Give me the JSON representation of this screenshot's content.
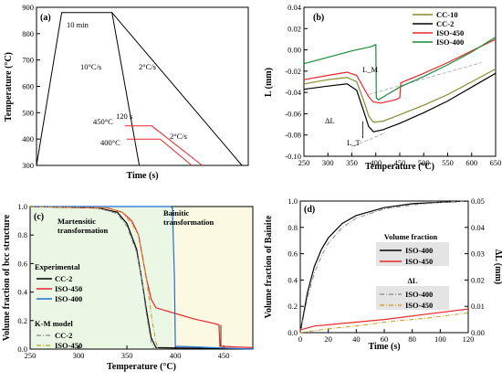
{
  "chart_data": [
    {
      "panel_label": "(a)",
      "type": "line",
      "xlabel": "Time (s)",
      "ylabel": "Temperature (°C)",
      "ylim": [
        300,
        900
      ],
      "yticks": [
        300,
        400,
        500,
        600,
        700,
        800,
        900
      ],
      "y_tick_labels": [
        "300",
        "400",
        "500",
        "600",
        "700",
        "800",
        "900"
      ],
      "annotations": [
        "10 min",
        "10°C/s",
        "2°C/s",
        "450°C",
        "120 s",
        "2°C/s",
        "400°C"
      ],
      "series": [
        {
          "color": "#000000",
          "points": [
            [
              0,
              300
            ],
            [
              0.6,
              880
            ],
            [
              1.8,
              880
            ],
            [
              2.45,
              300
            ]
          ]
        },
        {
          "color": "#000000",
          "points": [
            [
              1.8,
              880
            ],
            [
              4.9,
              300
            ]
          ]
        },
        {
          "color": "#e8262b",
          "points": [
            [
              2.1,
              450
            ],
            [
              2.75,
              450
            ],
            [
              3.95,
              300
            ]
          ]
        },
        {
          "color": "#e8262b",
          "points": [
            [
              2.15,
              400
            ],
            [
              2.95,
              400
            ],
            [
              3.7,
              300
            ]
          ]
        }
      ]
    },
    {
      "panel_label": "(b)",
      "type": "line",
      "xlabel": "Temperature (°C)",
      "ylabel": "L (mm)",
      "xlim": [
        250,
        650
      ],
      "ylim": [
        -0.1,
        0.04
      ],
      "xticks": [
        250,
        300,
        350,
        400,
        450,
        500,
        550,
        600,
        650
      ],
      "x_tick_labels": [
        "250",
        "300",
        "350",
        "400",
        "450",
        "500",
        "550",
        "600",
        "650"
      ],
      "yticks": [
        -0.1,
        -0.08,
        -0.06,
        -0.04,
        -0.02,
        0.0,
        0.02,
        0.04
      ],
      "y_tick_labels": [
        "-0.10",
        "-0.08",
        "-0.06",
        "-0.04",
        "-0.02",
        "0.00",
        "0.02",
        "0.04"
      ],
      "legend": {
        "position": "top-right",
        "entries": [
          "CC-10",
          "CC-2",
          "ISO-450",
          "ISO-400"
        ]
      },
      "annotations": [
        "L_M",
        "ΔL",
        "L_T"
      ],
      "series": [
        {
          "name": "CC-10",
          "color": "#8a8a2e",
          "points": [
            [
              250,
              -0.032
            ],
            [
              300,
              -0.028
            ],
            [
              340,
              -0.026
            ],
            [
              360,
              -0.03
            ],
            [
              375,
              -0.048
            ],
            [
              385,
              -0.062
            ],
            [
              395,
              -0.068
            ],
            [
              415,
              -0.067
            ],
            [
              450,
              -0.061
            ],
            [
              500,
              -0.052
            ],
            [
              550,
              -0.042
            ],
            [
              600,
              -0.03
            ],
            [
              650,
              -0.018
            ]
          ]
        },
        {
          "name": "CC-2",
          "color": "#000000",
          "points": [
            [
              250,
              -0.037
            ],
            [
              300,
              -0.034
            ],
            [
              340,
              -0.032
            ],
            [
              360,
              -0.038
            ],
            [
              375,
              -0.058
            ],
            [
              385,
              -0.072
            ],
            [
              395,
              -0.077
            ],
            [
              415,
              -0.075
            ],
            [
              450,
              -0.069
            ],
            [
              500,
              -0.059
            ],
            [
              550,
              -0.048
            ],
            [
              600,
              -0.035
            ],
            [
              650,
              -0.022
            ]
          ]
        },
        {
          "name": "ISO-450",
          "color": "#e8262b",
          "points": [
            [
              250,
              -0.028
            ],
            [
              300,
              -0.024
            ],
            [
              340,
              -0.021
            ],
            [
              360,
              -0.024
            ],
            [
              375,
              -0.036
            ],
            [
              385,
              -0.044
            ],
            [
              395,
              -0.049
            ],
            [
              410,
              -0.05
            ],
            [
              440,
              -0.047
            ],
            [
              450,
              -0.045
            ],
            [
              452,
              -0.031
            ],
            [
              500,
              -0.022
            ],
            [
              550,
              -0.012
            ],
            [
              600,
              -0.001
            ],
            [
              650,
              0.01
            ]
          ]
        },
        {
          "name": "ISO-400",
          "color": "#1f8a3a",
          "points": [
            [
              250,
              -0.013
            ],
            [
              300,
              -0.007
            ],
            [
              350,
              -0.001
            ],
            [
              390,
              0.003
            ],
            [
              400,
              0.005
            ],
            [
              401,
              -0.045
            ],
            [
              405,
              -0.047
            ],
            [
              420,
              -0.043
            ],
            [
              450,
              -0.035
            ],
            [
              500,
              -0.025
            ],
            [
              550,
              -0.014
            ],
            [
              600,
              -0.002
            ],
            [
              650,
              0.012
            ]
          ]
        }
      ]
    },
    {
      "panel_label": "(c)",
      "type": "line",
      "xlabel": "Temperature (°C)",
      "ylabel": "Volume fraction of bcc structure",
      "xlim": [
        250,
        480
      ],
      "ylim": [
        0,
        1.0
      ],
      "xticks": [
        250,
        300,
        350,
        400,
        450
      ],
      "x_tick_labels": [
        "250",
        "300",
        "350",
        "400",
        "450"
      ],
      "yticks": [
        0,
        0.2,
        0.4,
        0.6,
        0.8,
        1.0
      ],
      "y_tick_labels": [
        "0.0",
        "0.2",
        "0.4",
        "0.6",
        "0.8",
        "1.0"
      ],
      "regions": [
        "Martensitic transformation",
        "Bainitic transformation"
      ],
      "legend": {
        "position": "bottom-left",
        "group_titles": [
          "Experimental",
          "K-M model"
        ],
        "entries": [
          "CC-2",
          "ISO-450",
          "ISO-400",
          "CC-2",
          "ISO-450"
        ]
      },
      "series": [
        {
          "name": "CC-2",
          "group": "Experimental",
          "color": "#000000",
          "points": [
            [
              250,
              1.0
            ],
            [
              320,
              0.99
            ],
            [
              340,
              0.96
            ],
            [
              350,
              0.88
            ],
            [
              360,
              0.7
            ],
            [
              365,
              0.5
            ],
            [
              370,
              0.28
            ],
            [
              375,
              0.08
            ],
            [
              380,
              0.01
            ],
            [
              480,
              0.0
            ]
          ]
        },
        {
          "name": "ISO-450",
          "group": "Experimental",
          "color": "#e8262b",
          "points": [
            [
              250,
              1.0
            ],
            [
              330,
              0.99
            ],
            [
              345,
              0.96
            ],
            [
              355,
              0.9
            ],
            [
              362,
              0.8
            ],
            [
              370,
              0.5
            ],
            [
              375,
              0.35
            ],
            [
              380,
              0.29
            ],
            [
              400,
              0.25
            ],
            [
              420,
              0.21
            ],
            [
              440,
              0.18
            ],
            [
              445,
              0.17
            ],
            [
              446,
              0.02
            ],
            [
              480,
              0.01
            ]
          ]
        },
        {
          "name": "ISO-400",
          "group": "Experimental",
          "color": "#1e6fd0",
          "points": [
            [
              250,
              1.0
            ],
            [
              395,
              1.0
            ],
            [
              397,
              0.99
            ],
            [
              399,
              0.5
            ],
            [
              400,
              0.02
            ],
            [
              480,
              0.0
            ]
          ]
        },
        {
          "name": "CC-2",
          "group": "K-M model",
          "color": "#888888",
          "dashed": true,
          "points": [
            [
              250,
              1.0
            ],
            [
              320,
              0.99
            ],
            [
              340,
              0.95
            ],
            [
              350,
              0.86
            ],
            [
              360,
              0.68
            ],
            [
              365,
              0.5
            ],
            [
              370,
              0.25
            ],
            [
              375,
              0.05
            ],
            [
              378,
              0.0
            ]
          ]
        },
        {
          "name": "ISO-450",
          "group": "K-M model",
          "color": "#c79a1e",
          "dashed": true,
          "points": [
            [
              250,
              1.0
            ],
            [
              330,
              0.99
            ],
            [
              345,
              0.96
            ],
            [
              355,
              0.88
            ],
            [
              362,
              0.8
            ],
            [
              370,
              0.5
            ],
            [
              376,
              0.2
            ],
            [
              380,
              0.05
            ],
            [
              382,
              0.0
            ]
          ]
        }
      ]
    },
    {
      "panel_label": "(d)",
      "type": "line",
      "xlabel": "Time (s)",
      "ylabel": "Volume fraction of Bainite",
      "ylabel_right": "ΔL (mm)",
      "xlim": [
        0,
        120
      ],
      "ylim": [
        0,
        1.0
      ],
      "ylim_right": [
        0,
        0.05
      ],
      "xticks": [
        0,
        20,
        40,
        60,
        80,
        100,
        120
      ],
      "x_tick_labels": [
        "0",
        "20",
        "40",
        "60",
        "80",
        "100",
        "120"
      ],
      "yticks": [
        0,
        0.2,
        0.4,
        0.6,
        0.8,
        1.0
      ],
      "y_tick_labels": [
        "0.0",
        "0.2",
        "0.4",
        "0.6",
        "0.8",
        "1.0"
      ],
      "yticks_right": [
        0,
        0.01,
        0.02,
        0.03,
        0.04,
        0.05
      ],
      "y_tick_labels_right": [
        "0.00",
        "0.01",
        "0.02",
        "0.03",
        "0.04",
        "0.05"
      ],
      "legend": {
        "position": "right",
        "group_titles": [
          "Volume fraction",
          "ΔL"
        ],
        "entries": [
          "ISO-400",
          "ISO-450",
          "ISO-400",
          "ISO-450"
        ]
      },
      "series": [
        {
          "name": "ISO-400",
          "group": "Volume fraction",
          "color": "#000000",
          "points": [
            [
              0,
              0
            ],
            [
              5,
              0.3
            ],
            [
              10,
              0.5
            ],
            [
              15,
              0.63
            ],
            [
              20,
              0.72
            ],
            [
              30,
              0.83
            ],
            [
              40,
              0.89
            ],
            [
              60,
              0.95
            ],
            [
              80,
              0.98
            ],
            [
              100,
              0.99
            ],
            [
              120,
              1.0
            ]
          ]
        },
        {
          "name": "ISO-450",
          "group": "Volume fraction",
          "color": "#e8262b",
          "points": [
            [
              0,
              0.02
            ],
            [
              10,
              0.05
            ],
            [
              30,
              0.07
            ],
            [
              60,
              0.1
            ],
            [
              90,
              0.14
            ],
            [
              120,
              0.18
            ]
          ]
        },
        {
          "name": "ISO-400",
          "group": "ΔL",
          "color": "#888888",
          "dashed": true,
          "points": [
            [
              0,
              0
            ],
            [
              5,
              0.26
            ],
            [
              10,
              0.45
            ],
            [
              15,
              0.58
            ],
            [
              20,
              0.68
            ],
            [
              30,
              0.8
            ],
            [
              40,
              0.87
            ],
            [
              60,
              0.94
            ],
            [
              80,
              0.97
            ],
            [
              100,
              0.99
            ],
            [
              120,
              1.0
            ]
          ]
        },
        {
          "name": "ISO-450",
          "group": "ΔL",
          "color": "#c79a1e",
          "dashed": true,
          "points": [
            [
              0,
              0.0
            ],
            [
              20,
              0.03
            ],
            [
              40,
              0.05
            ],
            [
              60,
              0.08
            ],
            [
              90,
              0.11
            ],
            [
              120,
              0.15
            ]
          ]
        }
      ]
    }
  ]
}
